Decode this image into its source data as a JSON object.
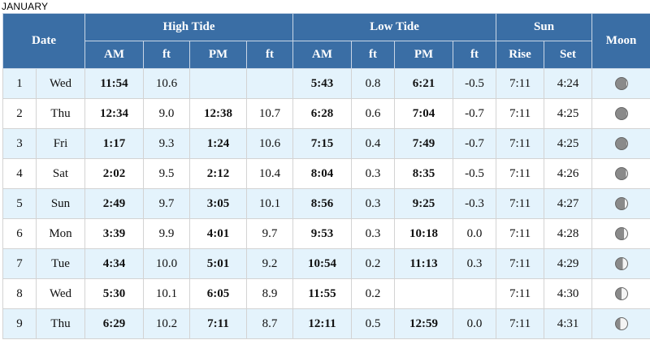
{
  "month": "JANUARY",
  "header": {
    "date": "Date",
    "high_tide": "High Tide",
    "low_tide": "Low Tide",
    "sun": "Sun",
    "moon": "Moon",
    "am": "AM",
    "ft": "ft",
    "pm": "PM",
    "rise": "Rise",
    "set": "Set"
  },
  "rows": [
    {
      "day": "1",
      "weekday": "Wed",
      "high_am": "11:54",
      "high_am_ft": "10.6",
      "high_pm": "",
      "high_pm_ft": "",
      "low_am": "5:43",
      "low_am_ft": "0.8",
      "low_pm": "6:21",
      "low_pm_ft": "-0.5",
      "rise": "7:11",
      "set": "4:24",
      "moon_icon": "waning-crescent-moon-icon",
      "moon_illumination": 0.08
    },
    {
      "day": "2",
      "weekday": "Thu",
      "high_am": "12:34",
      "high_am_ft": "9.0",
      "high_pm": "12:38",
      "high_pm_ft": "10.7",
      "low_am": "6:28",
      "low_am_ft": "0.6",
      "low_pm": "7:04",
      "low_pm_ft": "-0.7",
      "rise": "7:11",
      "set": "4:25",
      "moon_icon": "new-moon-icon",
      "moon_illumination": 0.02
    },
    {
      "day": "3",
      "weekday": "Fri",
      "high_am": "1:17",
      "high_am_ft": "9.3",
      "high_pm": "1:24",
      "high_pm_ft": "10.6",
      "low_am": "7:15",
      "low_am_ft": "0.4",
      "low_pm": "7:49",
      "low_pm_ft": "-0.7",
      "rise": "7:11",
      "set": "4:25",
      "moon_icon": "waxing-crescent-moon-icon",
      "moon_illumination": 0.05
    },
    {
      "day": "4",
      "weekday": "Sat",
      "high_am": "2:02",
      "high_am_ft": "9.5",
      "high_pm": "2:12",
      "high_pm_ft": "10.4",
      "low_am": "8:04",
      "low_am_ft": "0.3",
      "low_pm": "8:35",
      "low_pm_ft": "-0.5",
      "rise": "7:11",
      "set": "4:26",
      "moon_icon": "waxing-crescent-moon-icon",
      "moon_illumination": 0.12
    },
    {
      "day": "5",
      "weekday": "Sun",
      "high_am": "2:49",
      "high_am_ft": "9.7",
      "high_pm": "3:05",
      "high_pm_ft": "10.1",
      "low_am": "8:56",
      "low_am_ft": "0.3",
      "low_pm": "9:25",
      "low_pm_ft": "-0.3",
      "rise": "7:11",
      "set": "4:27",
      "moon_icon": "waxing-crescent-moon-icon",
      "moon_illumination": 0.2
    },
    {
      "day": "6",
      "weekday": "Mon",
      "high_am": "3:39",
      "high_am_ft": "9.9",
      "high_pm": "4:01",
      "high_pm_ft": "9.7",
      "low_am": "9:53",
      "low_am_ft": "0.3",
      "low_pm": "10:18",
      "low_pm_ft": "0.0",
      "rise": "7:11",
      "set": "4:28",
      "moon_icon": "waxing-crescent-moon-icon",
      "moon_illumination": 0.3
    },
    {
      "day": "7",
      "weekday": "Tue",
      "high_am": "4:34",
      "high_am_ft": "10.0",
      "high_pm": "5:01",
      "high_pm_ft": "9.2",
      "low_am": "10:54",
      "low_am_ft": "0.2",
      "low_pm": "11:13",
      "low_pm_ft": "0.3",
      "rise": "7:11",
      "set": "4:29",
      "moon_icon": "first-quarter-moon-icon",
      "moon_illumination": 0.4
    },
    {
      "day": "8",
      "weekday": "Wed",
      "high_am": "5:30",
      "high_am_ft": "10.1",
      "high_pm": "6:05",
      "high_pm_ft": "8.9",
      "low_am": "11:55",
      "low_am_ft": "0.2",
      "low_pm": "",
      "low_pm_ft": "",
      "rise": "7:11",
      "set": "4:30",
      "moon_icon": "first-quarter-moon-icon",
      "moon_illumination": 0.5
    },
    {
      "day": "9",
      "weekday": "Thu",
      "high_am": "6:29",
      "high_am_ft": "10.2",
      "high_pm": "7:11",
      "high_pm_ft": "8.7",
      "low_am": "12:11",
      "low_am_ft": "0.5",
      "low_pm": "12:59",
      "low_pm_ft": "0.0",
      "rise": "7:11",
      "set": "4:31",
      "moon_icon": "waxing-gibbous-moon-icon",
      "moon_illumination": 0.6
    }
  ],
  "colors": {
    "header_bg": "#3a6ea5",
    "row_alt_bg": "#e4f3fc",
    "moon_dark": "#8a8a8a",
    "moon_light": "#f4f4f4"
  }
}
